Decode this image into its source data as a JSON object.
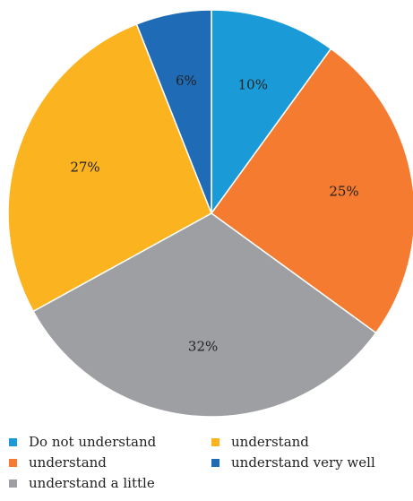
{
  "chart_data": {
    "type": "pie",
    "title": "",
    "start_angle_deg": 0,
    "direction": "clockwise",
    "legend_position": "bottom",
    "slices": [
      {
        "label": "Do not understand",
        "value": 10,
        "display": "10%",
        "color": "#1a9bd7"
      },
      {
        "label": "understand",
        "value": 25,
        "display": "25%",
        "color": "#f47b30"
      },
      {
        "label": "understand a little",
        "value": 32,
        "display": "32%",
        "color": "#9d9fa2"
      },
      {
        "label": "understand",
        "value": 27,
        "display": "27%",
        "color": "#fbb41f"
      },
      {
        "label": "understand very well",
        "value": 6,
        "display": "6%",
        "color": "#1f6bb5"
      }
    ]
  }
}
